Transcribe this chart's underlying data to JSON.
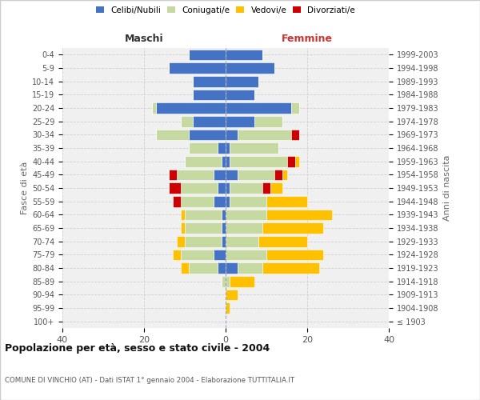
{
  "age_groups": [
    "100+",
    "95-99",
    "90-94",
    "85-89",
    "80-84",
    "75-79",
    "70-74",
    "65-69",
    "60-64",
    "55-59",
    "50-54",
    "45-49",
    "40-44",
    "35-39",
    "30-34",
    "25-29",
    "20-24",
    "15-19",
    "10-14",
    "5-9",
    "0-4"
  ],
  "birth_years": [
    "≤ 1903",
    "1904-1908",
    "1909-1913",
    "1914-1918",
    "1919-1923",
    "1924-1928",
    "1929-1933",
    "1934-1938",
    "1939-1943",
    "1944-1948",
    "1949-1953",
    "1954-1958",
    "1959-1963",
    "1964-1968",
    "1969-1973",
    "1974-1978",
    "1979-1983",
    "1984-1988",
    "1989-1993",
    "1994-1998",
    "1999-2003"
  ],
  "colors": {
    "celibi": "#4472c4",
    "coniugati": "#c5d9a0",
    "vedovi": "#ffc000",
    "divorziati": "#cc0000"
  },
  "maschi": {
    "celibi": [
      0,
      0,
      0,
      0,
      2,
      3,
      1,
      1,
      1,
      3,
      2,
      3,
      1,
      2,
      9,
      8,
      17,
      8,
      8,
      14,
      9
    ],
    "coniugati": [
      0,
      0,
      0,
      1,
      7,
      8,
      9,
      9,
      9,
      8,
      9,
      9,
      9,
      7,
      8,
      3,
      1,
      0,
      0,
      0,
      0
    ],
    "vedovi": [
      0,
      0,
      0,
      0,
      2,
      2,
      2,
      1,
      1,
      0,
      0,
      0,
      0,
      0,
      0,
      0,
      0,
      0,
      0,
      0,
      0
    ],
    "divorziati": [
      0,
      0,
      0,
      0,
      0,
      0,
      0,
      0,
      0,
      2,
      3,
      2,
      0,
      0,
      0,
      0,
      0,
      0,
      0,
      0,
      0
    ]
  },
  "femmine": {
    "celibi": [
      0,
      0,
      0,
      0,
      3,
      0,
      0,
      0,
      0,
      1,
      1,
      3,
      1,
      1,
      3,
      7,
      16,
      7,
      8,
      12,
      9
    ],
    "coniugati": [
      0,
      0,
      0,
      1,
      6,
      10,
      8,
      9,
      10,
      9,
      8,
      9,
      14,
      12,
      13,
      7,
      2,
      0,
      0,
      0,
      0
    ],
    "vedovi": [
      0,
      1,
      3,
      6,
      14,
      14,
      12,
      15,
      16,
      10,
      3,
      1,
      1,
      0,
      0,
      0,
      0,
      0,
      0,
      0,
      0
    ],
    "divorziati": [
      0,
      0,
      0,
      0,
      0,
      0,
      0,
      0,
      0,
      0,
      2,
      2,
      2,
      0,
      2,
      0,
      0,
      0,
      0,
      0,
      0
    ]
  },
  "title": "Popolazione per età, sesso e stato civile - 2004",
  "subtitle": "COMUNE DI VINCHIO (AT) - Dati ISTAT 1° gennaio 2004 - Elaborazione TUTTITALIA.IT",
  "xlabel_left": "Maschi",
  "xlabel_right": "Femmine",
  "ylabel_left": "Fasce di età",
  "ylabel_right": "Anni di nascita",
  "xlim": 40,
  "bg_color": "#f0f0f0",
  "grid_color": "#cccccc",
  "legend_labels": [
    "Celibi/Nubili",
    "Coniugati/e",
    "Vedovi/e",
    "Divorziati/e"
  ]
}
